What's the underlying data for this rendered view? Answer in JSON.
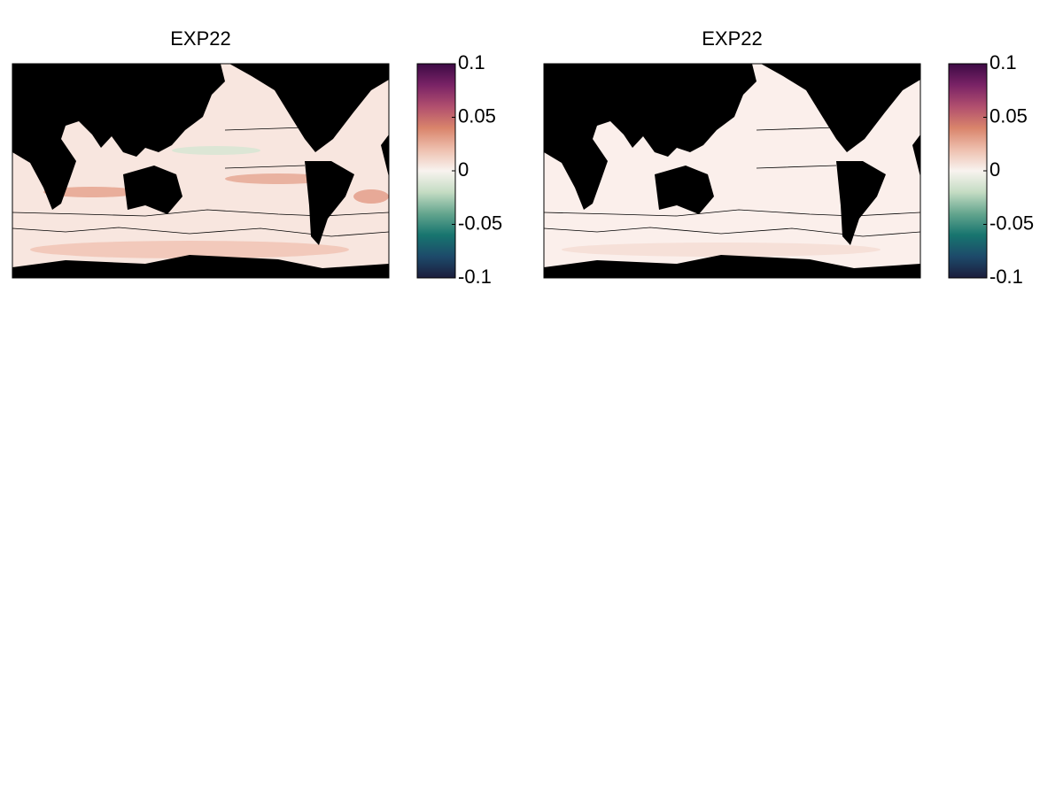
{
  "chart_data": [
    {
      "type": "map",
      "title": "EXP22",
      "clim": [
        -0.1,
        0.1
      ],
      "cticks": [
        0.1,
        0.05,
        0,
        -0.05,
        -0.1
      ],
      "colormap": [
        "#1b1d3c",
        "#1d4a6a",
        "#17756f",
        "#64a58e",
        "#c4dcc3",
        "#f8f3ef",
        "#eebfae",
        "#d9846b",
        "#b14f6e",
        "#7a2366",
        "#3d0a45"
      ]
    },
    {
      "type": "map",
      "title": "EXP22",
      "clim": [
        -0.1,
        0.1
      ],
      "cticks": [
        0.1,
        0.05,
        0,
        -0.05,
        -0.1
      ],
      "colormap": [
        "#1b1d3c",
        "#1d4a6a",
        "#17756f",
        "#64a58e",
        "#c4dcc3",
        "#f8f3ef",
        "#eebfae",
        "#d9846b",
        "#b14f6e",
        "#7a2366",
        "#3d0a45"
      ]
    }
  ]
}
